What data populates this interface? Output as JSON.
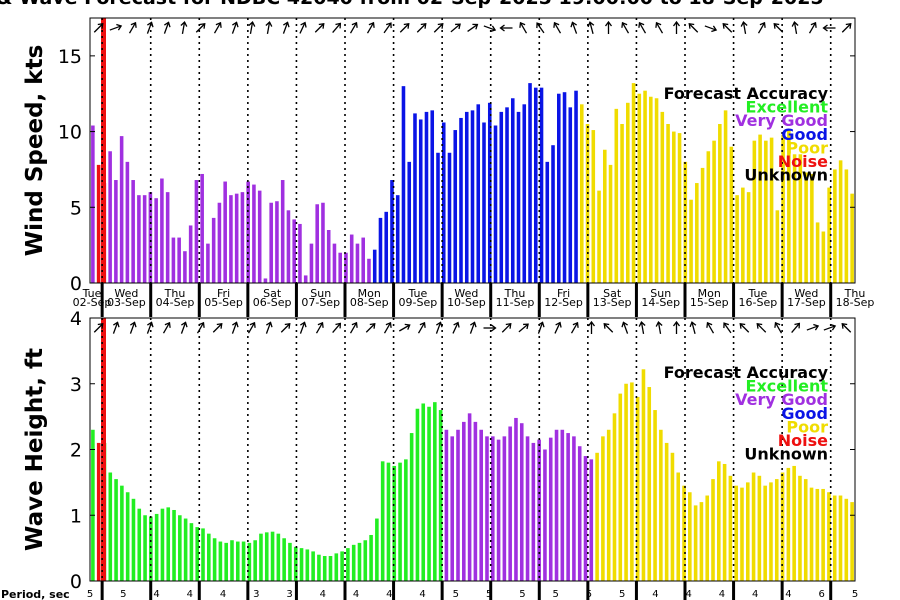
{
  "title": "& Wave Forecast for NDBC 42040 from 02-Sep-2025 19:00:00 to 18-Sep-2025",
  "colors": {
    "Excellent": "#22ee22",
    "Very Good": "#a030e0",
    "Good": "#0a14e6",
    "Poor": "#f0dc00",
    "Noise": "#ee1010",
    "Unknown": "#000000"
  },
  "day_labels": [
    {
      "dow": "Tue",
      "date": "02-Sep"
    },
    {
      "dow": "Wed",
      "date": "03-Sep"
    },
    {
      "dow": "Thu",
      "date": "04-Sep"
    },
    {
      "dow": "Fri",
      "date": "05-Sep"
    },
    {
      "dow": "Sat",
      "date": "06-Sep"
    },
    {
      "dow": "Sun",
      "date": "07-Sep"
    },
    {
      "dow": "Mon",
      "date": "08-Sep"
    },
    {
      "dow": "Tue",
      "date": "09-Sep"
    },
    {
      "dow": "Wed",
      "date": "10-Sep"
    },
    {
      "dow": "Thu",
      "date": "11-Sep"
    },
    {
      "dow": "Fri",
      "date": "12-Sep"
    },
    {
      "dow": "Sat",
      "date": "13-Sep"
    },
    {
      "dow": "Sun",
      "date": "14-Sep"
    },
    {
      "dow": "Mon",
      "date": "15-Sep"
    },
    {
      "dow": "Tue",
      "date": "16-Sep"
    },
    {
      "dow": "Wed",
      "date": "17-Sep"
    },
    {
      "dow": "Thu",
      "date": "18-Sep"
    }
  ],
  "period_label": "Period, sec",
  "periods": [
    "5",
    "5",
    "4",
    "4",
    "4",
    "3",
    "3",
    "4",
    "4",
    "4",
    "4",
    "5",
    "5",
    "5",
    "5",
    "5",
    "5",
    "4",
    "4",
    "4",
    "4",
    "4",
    "6",
    "5"
  ],
  "legend": {
    "title": "Forecast Accuracy",
    "items": [
      {
        "label": "Excellent",
        "color": "#22ee22"
      },
      {
        "label": "Very Good",
        "color": "#a030e0"
      },
      {
        "label": "Good",
        "color": "#0a14e6"
      },
      {
        "label": "Poor",
        "color": "#f0dc00"
      },
      {
        "label": "Noise",
        "color": "#ee1010"
      },
      {
        "label": "Unknown",
        "color": "#000000"
      }
    ]
  },
  "chart_data": [
    {
      "type": "bar",
      "ylabel": "Wind Speed, kts",
      "ylim": [
        0,
        17.5
      ],
      "yticks": [
        "0",
        "5",
        "10",
        "15"
      ],
      "x_range": [
        "02-Sep-2025 19:00",
        "18-Sep-2025 19:00"
      ],
      "bar_interval_hours": 3,
      "values": [
        10.4,
        7.8,
        6.6,
        8.7,
        6.8,
        9.7,
        8.0,
        6.8,
        5.8,
        5.8,
        6.0,
        5.6,
        6.9,
        6.0,
        3.0,
        3.0,
        2.1,
        3.8,
        6.8,
        7.2,
        2.6,
        4.3,
        5.3,
        6.7,
        5.8,
        5.9,
        6.0,
        6.7,
        6.5,
        6.1,
        0.3,
        5.3,
        5.4,
        6.8,
        4.8,
        4.2,
        3.9,
        0.5,
        2.6,
        5.2,
        5.3,
        3.5,
        2.6,
        2.0,
        2.0,
        3.2,
        2.6,
        3.0,
        1.6,
        2.2,
        4.3,
        4.7,
        6.8,
        5.8,
        13.0,
        8.0,
        11.2,
        10.8,
        11.3,
        11.4,
        8.6,
        10.6,
        8.6,
        10.1,
        10.9,
        11.3,
        11.4,
        11.8,
        10.6,
        11.9,
        10.4,
        11.3,
        11.6,
        12.2,
        11.3,
        11.8,
        13.2,
        12.9,
        12.9,
        8.0,
        9.1,
        12.5,
        12.6,
        11.6,
        12.7,
        11.8,
        10.5,
        10.1,
        6.1,
        8.8,
        7.8,
        11.5,
        10.5,
        11.9,
        13.2,
        12.5,
        12.7,
        12.3,
        12.2,
        11.3,
        10.5,
        10.0,
        9.9,
        8.0,
        5.5,
        6.6,
        7.6,
        8.7,
        9.4,
        10.5,
        11.4,
        9.0,
        5.8,
        6.3,
        6.0,
        9.4,
        9.8,
        9.4,
        9.6,
        4.8,
        9.8,
        10.1,
        8.5,
        8.5,
        7.3,
        7.2,
        4.0,
        3.4,
        6.3,
        7.5,
        8.1,
        7.5,
        5.9
      ],
      "accuracy": [
        "Very Good",
        "Noise",
        "Very Good",
        "Very Good",
        "Very Good",
        "Very Good",
        "Very Good",
        "Very Good",
        "Very Good",
        "Very Good",
        "Very Good",
        "Very Good",
        "Very Good",
        "Very Good",
        "Very Good",
        "Very Good",
        "Very Good",
        "Very Good",
        "Very Good",
        "Very Good",
        "Very Good",
        "Very Good",
        "Very Good",
        "Very Good",
        "Very Good",
        "Very Good",
        "Very Good",
        "Very Good",
        "Very Good",
        "Very Good",
        "Very Good",
        "Very Good",
        "Very Good",
        "Very Good",
        "Very Good",
        "Very Good",
        "Very Good",
        "Very Good",
        "Very Good",
        "Very Good",
        "Very Good",
        "Very Good",
        "Very Good",
        "Very Good",
        "Very Good",
        "Very Good",
        "Very Good",
        "Very Good",
        "Very Good",
        "Good",
        "Good",
        "Good",
        "Good",
        "Good",
        "Good",
        "Good",
        "Good",
        "Good",
        "Good",
        "Good",
        "Good",
        "Good",
        "Good",
        "Good",
        "Good",
        "Good",
        "Good",
        "Good",
        "Good",
        "Good",
        "Good",
        "Good",
        "Good",
        "Good",
        "Good",
        "Good",
        "Good",
        "Good",
        "Good",
        "Good",
        "Good",
        "Good",
        "Good",
        "Good",
        "Good",
        "Poor",
        "Poor",
        "Poor",
        "Poor",
        "Poor",
        "Poor",
        "Poor",
        "Poor",
        "Poor",
        "Poor",
        "Poor",
        "Poor",
        "Poor",
        "Poor",
        "Poor",
        "Poor",
        "Poor",
        "Poor",
        "Poor",
        "Poor",
        "Poor",
        "Poor",
        "Poor",
        "Poor",
        "Poor",
        "Poor",
        "Poor",
        "Poor",
        "Poor",
        "Poor",
        "Poor",
        "Poor",
        "Poor",
        "Poor",
        "Poor",
        "Poor",
        "Poor",
        "Poor",
        "Poor",
        "Poor",
        "Poor",
        "Poor",
        "Poor",
        "Poor",
        "Poor",
        "Poor",
        "Poor",
        "Poor"
      ],
      "direction_arrows_deg": [
        135,
        160,
        120,
        110,
        110,
        100,
        135,
        120,
        110,
        100,
        100,
        110,
        115,
        135,
        130,
        120,
        120,
        125,
        135,
        135,
        135,
        140,
        145,
        200,
        0,
        60,
        55,
        60,
        70,
        75,
        90,
        60,
        60,
        60,
        90,
        45,
        200,
        45,
        80,
        120,
        45,
        80,
        120,
        0,
        135
      ]
    },
    {
      "type": "bar",
      "ylabel": "Wave Height, ft",
      "ylim": [
        0,
        4
      ],
      "yticks": [
        "0",
        "1",
        "2",
        "3",
        "4"
      ],
      "x_range": [
        "02-Sep-2025 19:00",
        "18-Sep-2025 19:00"
      ],
      "bar_interval_hours": 3,
      "values": [
        2.3,
        2.1,
        2.1,
        1.65,
        1.55,
        1.45,
        1.35,
        1.25,
        1.1,
        1.0,
        0.98,
        1.02,
        1.1,
        1.12,
        1.08,
        1.0,
        0.95,
        0.88,
        0.82,
        0.8,
        0.72,
        0.65,
        0.6,
        0.58,
        0.62,
        0.6,
        0.6,
        0.58,
        0.62,
        0.72,
        0.74,
        0.75,
        0.72,
        0.65,
        0.58,
        0.52,
        0.5,
        0.48,
        0.45,
        0.4,
        0.38,
        0.38,
        0.42,
        0.45,
        0.5,
        0.55,
        0.58,
        0.62,
        0.7,
        0.95,
        1.82,
        1.8,
        1.75,
        1.8,
        1.85,
        2.25,
        2.62,
        2.7,
        2.65,
        2.72,
        2.6,
        2.3,
        2.2,
        2.3,
        2.42,
        2.55,
        2.42,
        2.3,
        2.2,
        2.2,
        2.15,
        2.2,
        2.35,
        2.48,
        2.4,
        2.2,
        2.1,
        2.15,
        2.0,
        2.18,
        2.3,
        2.3,
        2.25,
        2.2,
        2.05,
        1.9,
        1.85,
        1.95,
        2.2,
        2.3,
        2.55,
        2.85,
        3.0,
        3.02,
        2.8,
        3.22,
        2.95,
        2.6,
        2.3,
        2.1,
        1.95,
        1.65,
        1.45,
        1.35,
        1.15,
        1.2,
        1.3,
        1.55,
        1.82,
        1.78,
        1.6,
        1.45,
        1.42,
        1.5,
        1.65,
        1.6,
        1.45,
        1.5,
        1.55,
        1.65,
        1.72,
        1.75,
        1.6,
        1.55,
        1.42,
        1.4,
        1.4,
        1.35,
        1.3,
        1.3,
        1.25,
        1.2
      ],
      "accuracy": [
        "Excellent",
        "Noise",
        "Excellent",
        "Excellent",
        "Excellent",
        "Excellent",
        "Excellent",
        "Excellent",
        "Excellent",
        "Excellent",
        "Excellent",
        "Excellent",
        "Excellent",
        "Excellent",
        "Excellent",
        "Excellent",
        "Excellent",
        "Excellent",
        "Excellent",
        "Excellent",
        "Excellent",
        "Excellent",
        "Excellent",
        "Excellent",
        "Excellent",
        "Excellent",
        "Excellent",
        "Excellent",
        "Excellent",
        "Excellent",
        "Excellent",
        "Excellent",
        "Excellent",
        "Excellent",
        "Excellent",
        "Excellent",
        "Excellent",
        "Excellent",
        "Excellent",
        "Excellent",
        "Excellent",
        "Excellent",
        "Excellent",
        "Excellent",
        "Excellent",
        "Excellent",
        "Excellent",
        "Excellent",
        "Excellent",
        "Excellent",
        "Excellent",
        "Excellent",
        "Excellent",
        "Excellent",
        "Excellent",
        "Excellent",
        "Excellent",
        "Excellent",
        "Excellent",
        "Excellent",
        "Excellent",
        "Very Good",
        "Very Good",
        "Very Good",
        "Very Good",
        "Very Good",
        "Very Good",
        "Very Good",
        "Very Good",
        "Very Good",
        "Very Good",
        "Very Good",
        "Very Good",
        "Very Good",
        "Very Good",
        "Very Good",
        "Very Good",
        "Very Good",
        "Very Good",
        "Very Good",
        "Very Good",
        "Very Good",
        "Very Good",
        "Very Good",
        "Very Good",
        "Very Good",
        "Very Good",
        "Poor",
        "Poor",
        "Poor",
        "Poor",
        "Poor",
        "Poor",
        "Poor",
        "Poor",
        "Poor",
        "Poor",
        "Poor",
        "Poor",
        "Poor",
        "Poor",
        "Poor",
        "Poor",
        "Poor",
        "Poor",
        "Poor",
        "Poor",
        "Poor",
        "Poor",
        "Poor",
        "Poor",
        "Poor",
        "Poor",
        "Poor",
        "Poor",
        "Poor",
        "Poor",
        "Poor",
        "Poor",
        "Poor",
        "Poor",
        "Poor",
        "Poor",
        "Poor",
        "Poor",
        "Poor",
        "Poor",
        "Poor",
        "Poor",
        "Poor",
        "Poor",
        "Poor"
      ],
      "direction_arrows_deg": [
        135,
        110,
        110,
        110,
        120,
        110,
        120,
        135,
        110,
        120,
        110,
        135,
        110,
        120,
        130,
        120,
        135,
        120,
        150,
        120,
        110,
        115,
        110,
        180,
        135,
        140,
        110,
        115,
        120,
        90,
        45,
        70,
        80,
        80,
        90,
        75,
        60,
        55,
        45,
        45,
        60,
        130,
        160,
        160,
        45
      ]
    }
  ]
}
